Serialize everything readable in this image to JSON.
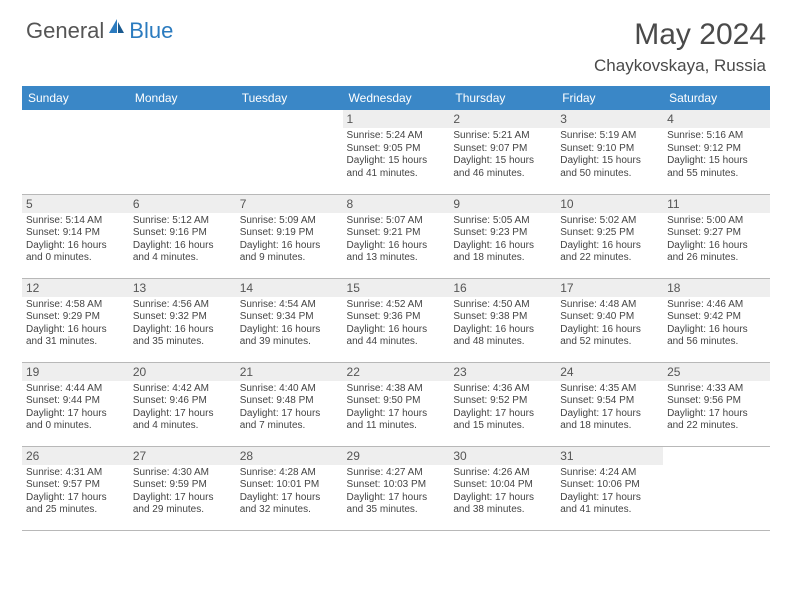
{
  "logo": {
    "part1": "General",
    "part2": "Blue"
  },
  "title": "May 2024",
  "location": "Chaykovskaya, Russia",
  "colors": {
    "header_bg": "#3a87c7",
    "header_text": "#ffffff",
    "daynum_bg": "#eeeeee",
    "border": "#b8b8b8",
    "text": "#444444",
    "logo_gray": "#555555",
    "logo_blue": "#2b7bbf"
  },
  "typography": {
    "title_fontsize": 30,
    "location_fontsize": 17,
    "header_fontsize": 12,
    "daynum_fontsize": 12,
    "detail_fontsize": 10
  },
  "days_of_week": [
    "Sunday",
    "Monday",
    "Tuesday",
    "Wednesday",
    "Thursday",
    "Friday",
    "Saturday"
  ],
  "weeks": [
    [
      null,
      null,
      null,
      {
        "n": "1",
        "sr": "5:24 AM",
        "ss": "9:05 PM",
        "dl": "15 hours and 41 minutes."
      },
      {
        "n": "2",
        "sr": "5:21 AM",
        "ss": "9:07 PM",
        "dl": "15 hours and 46 minutes."
      },
      {
        "n": "3",
        "sr": "5:19 AM",
        "ss": "9:10 PM",
        "dl": "15 hours and 50 minutes."
      },
      {
        "n": "4",
        "sr": "5:16 AM",
        "ss": "9:12 PM",
        "dl": "15 hours and 55 minutes."
      }
    ],
    [
      {
        "n": "5",
        "sr": "5:14 AM",
        "ss": "9:14 PM",
        "dl": "16 hours and 0 minutes."
      },
      {
        "n": "6",
        "sr": "5:12 AM",
        "ss": "9:16 PM",
        "dl": "16 hours and 4 minutes."
      },
      {
        "n": "7",
        "sr": "5:09 AM",
        "ss": "9:19 PM",
        "dl": "16 hours and 9 minutes."
      },
      {
        "n": "8",
        "sr": "5:07 AM",
        "ss": "9:21 PM",
        "dl": "16 hours and 13 minutes."
      },
      {
        "n": "9",
        "sr": "5:05 AM",
        "ss": "9:23 PM",
        "dl": "16 hours and 18 minutes."
      },
      {
        "n": "10",
        "sr": "5:02 AM",
        "ss": "9:25 PM",
        "dl": "16 hours and 22 minutes."
      },
      {
        "n": "11",
        "sr": "5:00 AM",
        "ss": "9:27 PM",
        "dl": "16 hours and 26 minutes."
      }
    ],
    [
      {
        "n": "12",
        "sr": "4:58 AM",
        "ss": "9:29 PM",
        "dl": "16 hours and 31 minutes."
      },
      {
        "n": "13",
        "sr": "4:56 AM",
        "ss": "9:32 PM",
        "dl": "16 hours and 35 minutes."
      },
      {
        "n": "14",
        "sr": "4:54 AM",
        "ss": "9:34 PM",
        "dl": "16 hours and 39 minutes."
      },
      {
        "n": "15",
        "sr": "4:52 AM",
        "ss": "9:36 PM",
        "dl": "16 hours and 44 minutes."
      },
      {
        "n": "16",
        "sr": "4:50 AM",
        "ss": "9:38 PM",
        "dl": "16 hours and 48 minutes."
      },
      {
        "n": "17",
        "sr": "4:48 AM",
        "ss": "9:40 PM",
        "dl": "16 hours and 52 minutes."
      },
      {
        "n": "18",
        "sr": "4:46 AM",
        "ss": "9:42 PM",
        "dl": "16 hours and 56 minutes."
      }
    ],
    [
      {
        "n": "19",
        "sr": "4:44 AM",
        "ss": "9:44 PM",
        "dl": "17 hours and 0 minutes."
      },
      {
        "n": "20",
        "sr": "4:42 AM",
        "ss": "9:46 PM",
        "dl": "17 hours and 4 minutes."
      },
      {
        "n": "21",
        "sr": "4:40 AM",
        "ss": "9:48 PM",
        "dl": "17 hours and 7 minutes."
      },
      {
        "n": "22",
        "sr": "4:38 AM",
        "ss": "9:50 PM",
        "dl": "17 hours and 11 minutes."
      },
      {
        "n": "23",
        "sr": "4:36 AM",
        "ss": "9:52 PM",
        "dl": "17 hours and 15 minutes."
      },
      {
        "n": "24",
        "sr": "4:35 AM",
        "ss": "9:54 PM",
        "dl": "17 hours and 18 minutes."
      },
      {
        "n": "25",
        "sr": "4:33 AM",
        "ss": "9:56 PM",
        "dl": "17 hours and 22 minutes."
      }
    ],
    [
      {
        "n": "26",
        "sr": "4:31 AM",
        "ss": "9:57 PM",
        "dl": "17 hours and 25 minutes."
      },
      {
        "n": "27",
        "sr": "4:30 AM",
        "ss": "9:59 PM",
        "dl": "17 hours and 29 minutes."
      },
      {
        "n": "28",
        "sr": "4:28 AM",
        "ss": "10:01 PM",
        "dl": "17 hours and 32 minutes."
      },
      {
        "n": "29",
        "sr": "4:27 AM",
        "ss": "10:03 PM",
        "dl": "17 hours and 35 minutes."
      },
      {
        "n": "30",
        "sr": "4:26 AM",
        "ss": "10:04 PM",
        "dl": "17 hours and 38 minutes."
      },
      {
        "n": "31",
        "sr": "4:24 AM",
        "ss": "10:06 PM",
        "dl": "17 hours and 41 minutes."
      },
      null
    ]
  ],
  "labels": {
    "sunrise": "Sunrise:",
    "sunset": "Sunset:",
    "daylight": "Daylight:"
  }
}
